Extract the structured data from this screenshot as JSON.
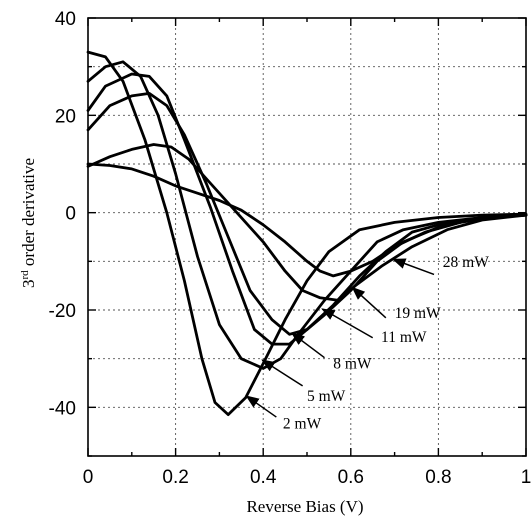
{
  "chart_data": {
    "type": "line",
    "title": "",
    "xlabel": "Reverse Bias (V)",
    "ylabel_main": "3",
    "ylabel_sup": "rd",
    "ylabel_rest": " order derivative",
    "xlim": [
      0,
      1
    ],
    "ylim": [
      -50,
      40
    ],
    "x_ticks": [
      0,
      0.2,
      0.4,
      0.6,
      0.8,
      1
    ],
    "x_tick_labels": [
      "0",
      "0.2",
      "0.4",
      "0.6",
      "0.8",
      "1"
    ],
    "y_ticks": [
      -40,
      -20,
      0,
      20,
      40
    ],
    "y_tick_labels": [
      "-40",
      "-20",
      "0",
      "20",
      "40"
    ],
    "grid": true,
    "series": [
      {
        "name": "2 mW",
        "points": [
          [
            0,
            33
          ],
          [
            0.04,
            32
          ],
          [
            0.08,
            27
          ],
          [
            0.13,
            15
          ],
          [
            0.18,
            0
          ],
          [
            0.22,
            -14
          ],
          [
            0.26,
            -30
          ],
          [
            0.29,
            -39
          ],
          [
            0.32,
            -41.5
          ],
          [
            0.36,
            -38
          ],
          [
            0.4,
            -31
          ],
          [
            0.45,
            -22
          ],
          [
            0.5,
            -14
          ],
          [
            0.55,
            -8
          ],
          [
            0.62,
            -3.5
          ],
          [
            0.7,
            -2
          ],
          [
            0.8,
            -1
          ],
          [
            0.9,
            -0.5
          ],
          [
            1.0,
            -0.3
          ]
        ]
      },
      {
        "name": "5 mW",
        "points": [
          [
            0,
            27
          ],
          [
            0.04,
            30
          ],
          [
            0.08,
            31
          ],
          [
            0.12,
            28
          ],
          [
            0.16,
            20
          ],
          [
            0.2,
            8
          ],
          [
            0.25,
            -9
          ],
          [
            0.3,
            -23
          ],
          [
            0.35,
            -30
          ],
          [
            0.4,
            -32
          ],
          [
            0.44,
            -30
          ],
          [
            0.48,
            -25
          ],
          [
            0.54,
            -18
          ],
          [
            0.6,
            -12
          ],
          [
            0.66,
            -6
          ],
          [
            0.72,
            -3.5
          ],
          [
            0.8,
            -2
          ],
          [
            0.9,
            -1
          ],
          [
            1.0,
            -0.5
          ]
        ]
      },
      {
        "name": "8 mW",
        "points": [
          [
            0,
            21
          ],
          [
            0.04,
            26
          ],
          [
            0.1,
            28.5
          ],
          [
            0.14,
            28
          ],
          [
            0.18,
            24
          ],
          [
            0.22,
            15
          ],
          [
            0.28,
            1
          ],
          [
            0.33,
            -12
          ],
          [
            0.38,
            -24
          ],
          [
            0.42,
            -27
          ],
          [
            0.46,
            -27
          ],
          [
            0.5,
            -24
          ],
          [
            0.56,
            -19
          ],
          [
            0.62,
            -13
          ],
          [
            0.68,
            -8
          ],
          [
            0.74,
            -4
          ],
          [
            0.8,
            -2.5
          ],
          [
            0.9,
            -1
          ],
          [
            1.0,
            -0.5
          ]
        ]
      },
      {
        "name": "11 mW",
        "points": [
          [
            0,
            17
          ],
          [
            0.05,
            22
          ],
          [
            0.1,
            24
          ],
          [
            0.14,
            24.5
          ],
          [
            0.18,
            22
          ],
          [
            0.22,
            16
          ],
          [
            0.27,
            6
          ],
          [
            0.32,
            -5
          ],
          [
            0.37,
            -16
          ],
          [
            0.42,
            -22
          ],
          [
            0.46,
            -25
          ],
          [
            0.5,
            -24
          ],
          [
            0.54,
            -21
          ],
          [
            0.6,
            -16
          ],
          [
            0.66,
            -10
          ],
          [
            0.72,
            -6
          ],
          [
            0.8,
            -3
          ],
          [
            0.9,
            -1
          ],
          [
            1.0,
            -0.5
          ]
        ]
      },
      {
        "name": "19 mW",
        "points": [
          [
            0,
            9.5
          ],
          [
            0.05,
            11.5
          ],
          [
            0.1,
            13
          ],
          [
            0.15,
            14
          ],
          [
            0.19,
            13.5
          ],
          [
            0.23,
            11
          ],
          [
            0.28,
            6
          ],
          [
            0.34,
            0
          ],
          [
            0.4,
            -6
          ],
          [
            0.45,
            -12
          ],
          [
            0.49,
            -16
          ],
          [
            0.53,
            -17.5
          ],
          [
            0.57,
            -18
          ],
          [
            0.61,
            -15
          ],
          [
            0.67,
            -11
          ],
          [
            0.74,
            -7
          ],
          [
            0.82,
            -3.5
          ],
          [
            0.9,
            -1.5
          ],
          [
            1.0,
            -0.5
          ]
        ]
      },
      {
        "name": "28 mW",
        "points": [
          [
            0,
            10
          ],
          [
            0.05,
            9.7
          ],
          [
            0.1,
            9
          ],
          [
            0.15,
            7.5
          ],
          [
            0.2,
            5.5
          ],
          [
            0.25,
            4
          ],
          [
            0.3,
            2.5
          ],
          [
            0.35,
            0.5
          ],
          [
            0.4,
            -2.5
          ],
          [
            0.45,
            -6
          ],
          [
            0.5,
            -10
          ],
          [
            0.53,
            -12
          ],
          [
            0.56,
            -13
          ],
          [
            0.6,
            -12
          ],
          [
            0.65,
            -10
          ],
          [
            0.7,
            -7
          ],
          [
            0.77,
            -4
          ],
          [
            0.85,
            -2
          ],
          [
            0.92,
            -1
          ],
          [
            1.0,
            -0.5
          ]
        ]
      }
    ],
    "annotations": [
      {
        "label": "28 mW",
        "from": [
          0.79,
          -12.7
        ],
        "to": [
          0.697,
          -9.6
        ]
      },
      {
        "label": "19 mW",
        "from": [
          0.68,
          -21.6
        ],
        "to": [
          0.604,
          -15.4
        ]
      },
      {
        "label": "11 mW",
        "from": [
          0.65,
          -25.7
        ],
        "to": [
          0.535,
          -19.8
        ]
      },
      {
        "label": "8 mW",
        "from": [
          0.54,
          -29.8
        ],
        "to": [
          0.466,
          -24.8
        ]
      },
      {
        "label": "5 mW",
        "from": [
          0.49,
          -35.6
        ],
        "to": [
          0.398,
          -30.3
        ]
      },
      {
        "label": "2 mW",
        "from": [
          0.43,
          -42.0
        ],
        "to": [
          0.362,
          -37.7
        ]
      }
    ],
    "annotation_text_positions": [
      [
        0.81,
        -11.2
      ],
      [
        0.7,
        -21.6
      ],
      [
        0.669,
        -26.6
      ],
      [
        0.56,
        -32.0
      ],
      [
        0.5,
        -38.7
      ],
      [
        0.445,
        -44.3
      ]
    ]
  }
}
